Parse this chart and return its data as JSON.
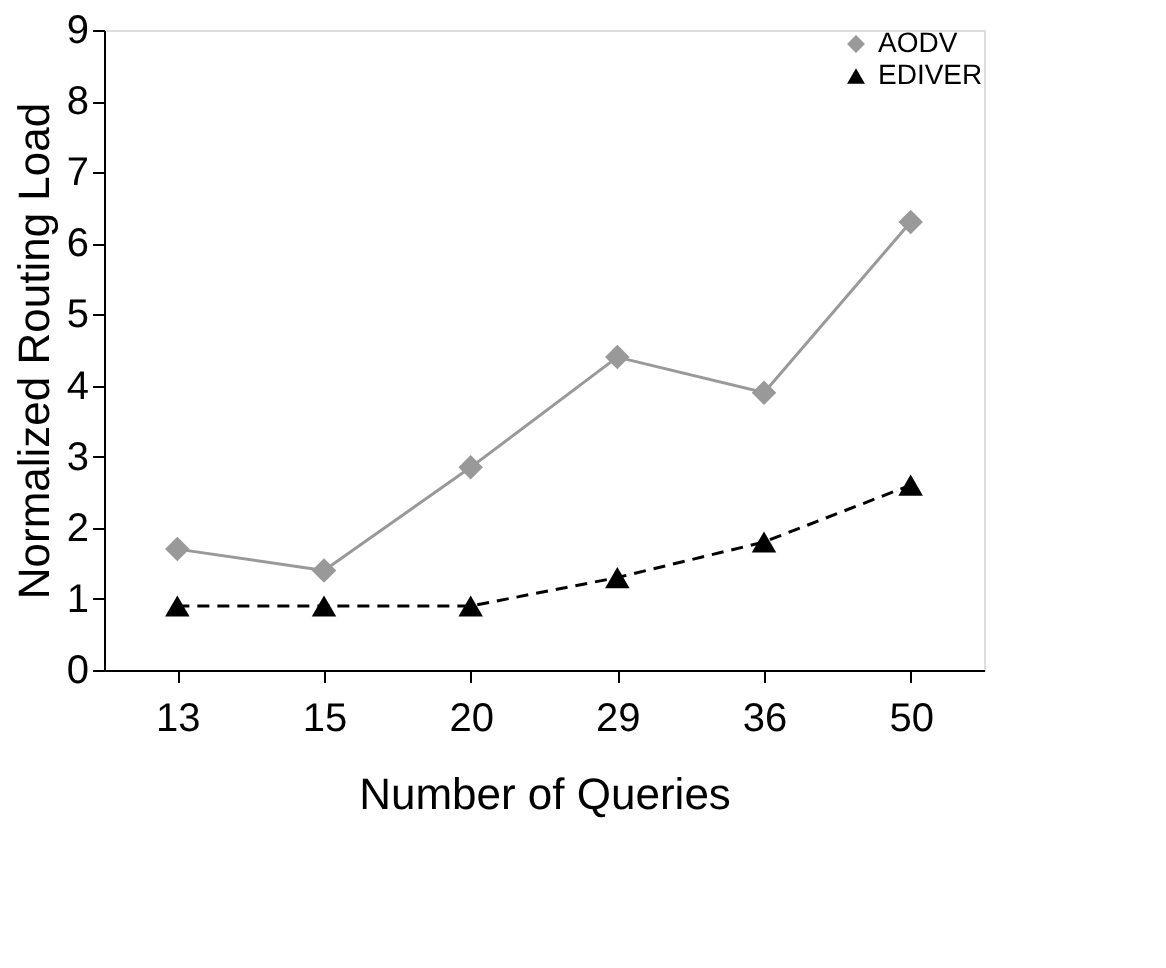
{
  "chart_data": {
    "type": "line",
    "xlabel": "Number of Queries",
    "ylabel": "Normalized Routing Load",
    "categories": [
      "13",
      "15",
      "20",
      "29",
      "36",
      "50"
    ],
    "series": [
      {
        "name": "AODV",
        "color": "#999999",
        "marker": "diamond",
        "line_style": "solid",
        "values": [
          1.7,
          1.4,
          2.85,
          4.4,
          3.9,
          6.3
        ]
      },
      {
        "name": "EDIVER",
        "color": "#000000",
        "marker": "triangle",
        "line_style": "dashed",
        "values": [
          0.9,
          0.9,
          0.9,
          1.3,
          1.8,
          2.6
        ]
      }
    ],
    "ylim": [
      0,
      9
    ],
    "yticks": [
      0,
      1,
      2,
      3,
      4,
      5,
      6,
      7,
      8,
      9
    ],
    "grid": false,
    "legend": "top right"
  }
}
